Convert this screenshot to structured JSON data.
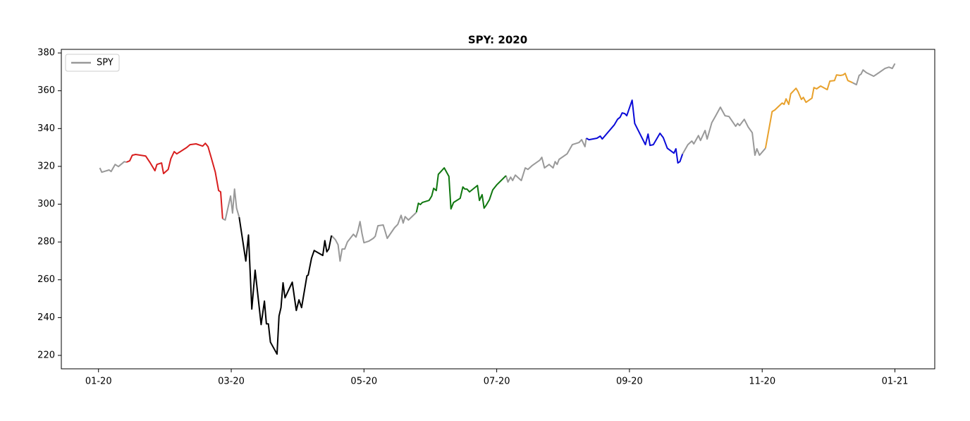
{
  "chart_data": {
    "type": "line",
    "title": "SPY: 2020",
    "xlim": [
      -0.56,
      12.6
    ],
    "xticks": [
      {
        "value": 0,
        "label": "01-20"
      },
      {
        "value": 2,
        "label": "03-20"
      },
      {
        "value": 4,
        "label": "05-20"
      },
      {
        "value": 6,
        "label": "07-20"
      },
      {
        "value": 8,
        "label": "09-20"
      },
      {
        "value": 10,
        "label": "11-20"
      },
      {
        "value": 12,
        "label": "01-21"
      }
    ],
    "ylim": [
      212.9,
      381.9
    ],
    "yticks": [
      220,
      240,
      260,
      280,
      300,
      320,
      340,
      360,
      380
    ],
    "legend": "upper left",
    "series": [
      {
        "name": "SPY",
        "color": "#999999",
        "x": [
          0.02,
          0.05,
          0.16,
          0.19,
          0.25,
          0.3,
          0.39,
          0.42,
          null,
          1.87,
          1.91,
          1.99,
          2.02,
          2.05,
          2.08,
          2.12,
          null,
          3.51,
          3.57,
          3.61,
          3.64,
          3.67,
          3.71,
          3.75,
          3.84,
          3.88,
          3.91,
          3.94,
          3.97,
          4.0,
          4.07,
          4.14,
          4.17,
          4.21,
          4.29,
          4.32,
          4.35,
          4.46,
          4.51,
          4.56,
          4.59,
          4.62,
          4.67,
          4.79,
          null,
          6.14,
          6.17,
          6.21,
          6.24,
          6.28,
          6.37,
          6.43,
          6.47,
          6.53,
          6.65,
          6.68,
          6.72,
          6.79,
          6.85,
          6.88,
          6.91,
          6.94,
          7.06,
          7.14,
          7.24,
          7.28,
          7.33,
          7.35,
          null,
          8.8,
          8.88,
          8.94,
          8.97,
          9.04,
          9.07,
          9.14,
          9.17,
          9.24,
          9.3,
          9.37,
          9.44,
          9.5,
          9.6,
          9.63,
          9.66,
          9.73,
          9.79,
          9.85,
          9.89,
          9.92,
          9.96,
          10.05,
          null,
          11.36,
          11.42,
          11.46,
          11.49,
          11.52,
          11.57,
          11.68,
          11.76,
          11.85,
          11.91,
          11.96,
          12.0
        ],
        "values": [
          319.2,
          316.9,
          318.1,
          317.3,
          321.0,
          319.9,
          322.5,
          322.2,
          null,
          292.3,
          291.6,
          304.3,
          295.3,
          308.0,
          297.9,
          293.1,
          null,
          283.4,
          281.2,
          278.5,
          269.9,
          276.3,
          276.3,
          280.0,
          284.1,
          282.6,
          286.0,
          290.8,
          284.5,
          279.6,
          280.4,
          281.9,
          283.0,
          288.6,
          289.0,
          285.6,
          281.9,
          287.5,
          289.3,
          294.1,
          290.0,
          293.4,
          291.6,
          295.7,
          null,
          315.1,
          311.7,
          314.3,
          312.5,
          315.4,
          312.5,
          319.2,
          318.4,
          320.3,
          323.3,
          324.8,
          319.2,
          321.0,
          319.2,
          322.5,
          321.0,
          323.7,
          326.6,
          331.5,
          332.6,
          334.1,
          330.4,
          334.9,
          null,
          326.5,
          331.5,
          333.4,
          331.9,
          336.3,
          333.7,
          339.0,
          334.5,
          343.1,
          346.8,
          351.3,
          346.8,
          346.4,
          341.2,
          342.7,
          341.6,
          344.9,
          340.8,
          337.8,
          325.9,
          329.3,
          325.9,
          329.6,
          null,
          364.3,
          363.2,
          368.1,
          368.8,
          371.0,
          369.6,
          367.7,
          369.6,
          371.8,
          372.5,
          371.8,
          374.4
        ]
      },
      {
        "color": "#d81e1e",
        "x": [
          0.42,
          0.47,
          0.51,
          0.56,
          0.71,
          0.78,
          0.85,
          0.88,
          0.95,
          0.98,
          1.05,
          1.09,
          1.14,
          1.18,
          1.33,
          1.38,
          1.47,
          1.57,
          1.61,
          1.65,
          1.7,
          1.76,
          1.81,
          1.84,
          1.87
        ],
        "values": [
          322.2,
          322.9,
          325.9,
          326.3,
          325.5,
          321.8,
          317.7,
          321.0,
          321.8,
          316.2,
          318.4,
          324.0,
          327.8,
          326.6,
          330.0,
          331.5,
          331.9,
          330.7,
          332.2,
          330.4,
          324.4,
          317.0,
          307.2,
          306.5,
          292.3
        ]
      },
      {
        "color": "#000000",
        "x": [
          2.12,
          2.22,
          2.26,
          2.31,
          2.36,
          2.45,
          2.5,
          2.53,
          2.56,
          2.59,
          2.69,
          2.72,
          2.75,
          2.78,
          2.81,
          2.92,
          2.98,
          3.02,
          3.06,
          3.14,
          3.16,
          3.21,
          3.25,
          3.38,
          3.41,
          3.44,
          3.47,
          3.51
        ],
        "values": [
          293.1,
          269.9,
          283.7,
          244.5,
          265.1,
          236.3,
          248.7,
          236.7,
          236.7,
          227.0,
          220.7,
          240.8,
          245.3,
          258.4,
          250.5,
          258.7,
          243.8,
          249.4,
          245.3,
          262.1,
          262.5,
          271.4,
          275.5,
          272.9,
          280.7,
          274.8,
          276.3,
          283.4
        ]
      },
      {
        "color": "#0f770f",
        "x": [
          4.79,
          4.82,
          4.85,
          4.88,
          4.98,
          5.02,
          5.05,
          5.09,
          5.12,
          5.21,
          5.28,
          5.31,
          5.35,
          5.45,
          5.49,
          5.52,
          5.55,
          5.59,
          5.71,
          5.74,
          5.78,
          5.81,
          5.84,
          5.89,
          5.94,
          6.0,
          6.14
        ],
        "values": [
          295.7,
          300.5,
          299.8,
          300.9,
          302.0,
          304.3,
          308.4,
          307.2,
          315.8,
          319.2,
          314.7,
          297.5,
          300.9,
          303.1,
          309.1,
          308.0,
          308.0,
          306.5,
          309.9,
          302.0,
          305.0,
          297.9,
          299.4,
          302.4,
          307.6,
          310.2,
          315.1
        ]
      },
      {
        "color": "#0a0ad8",
        "x": [
          7.35,
          7.39,
          7.51,
          7.56,
          7.59,
          7.77,
          7.82,
          7.86,
          7.89,
          7.93,
          7.96,
          8.04,
          8.08,
          8.24,
          8.28,
          8.31,
          8.36,
          8.46,
          8.51,
          8.57,
          8.67,
          8.7,
          8.73,
          8.76,
          8.8
        ],
        "values": [
          334.9,
          334.1,
          334.9,
          336.0,
          334.5,
          341.9,
          344.9,
          346.0,
          348.3,
          347.9,
          346.8,
          355.0,
          342.7,
          331.5,
          337.1,
          331.1,
          331.5,
          337.5,
          335.2,
          329.6,
          327.0,
          329.3,
          321.8,
          322.5,
          326.5
        ]
      },
      {
        "color": "#e8a12c",
        "x": [
          10.05,
          10.15,
          10.19,
          10.3,
          10.33,
          10.36,
          10.4,
          10.43,
          10.51,
          10.54,
          10.59,
          10.62,
          10.66,
          10.75,
          10.78,
          10.82,
          10.88,
          10.98,
          11.02,
          11.09,
          11.12,
          11.18,
          11.22,
          11.25,
          11.29,
          11.36
        ],
        "values": [
          329.6,
          349.0,
          349.8,
          353.5,
          352.8,
          355.7,
          352.8,
          358.4,
          361.3,
          359.5,
          355.4,
          356.5,
          353.9,
          356.1,
          361.7,
          361.0,
          362.5,
          360.6,
          365.1,
          365.4,
          368.4,
          368.1,
          368.4,
          369.2,
          365.4,
          364.3
        ]
      }
    ]
  }
}
